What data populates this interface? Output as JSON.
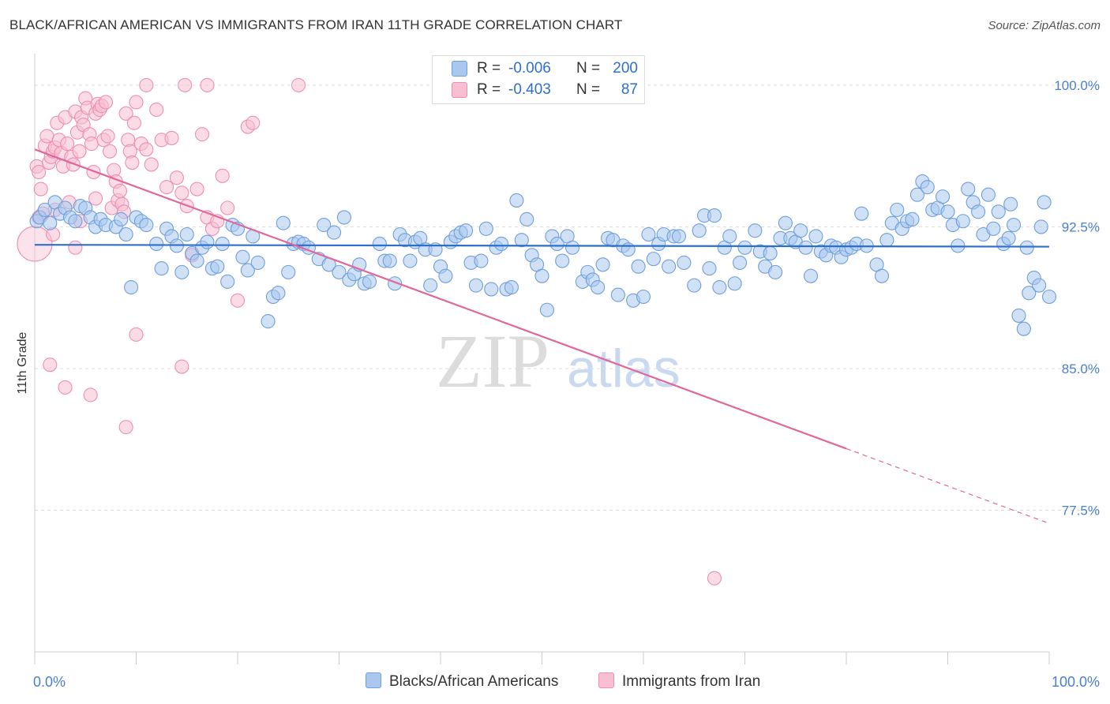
{
  "title": "BLACK/AFRICAN AMERICAN VS IMMIGRANTS FROM IRAN 11TH GRADE CORRELATION CHART",
  "source": "Source: ZipAtlas.com",
  "watermark": {
    "zip": "ZIP",
    "atlas": "atlas"
  },
  "colors": {
    "blue_fill": "#aac8ee",
    "blue_stroke": "#6f9fdc",
    "blue_line": "#2d6fcc",
    "pink_fill": "#f8bfd2",
    "pink_stroke": "#ee8fb0",
    "pink_line": "#e0689a",
    "axis_text": "#4a7fcf",
    "grid": "#dddddd"
  },
  "legend": {
    "rows": [
      {
        "r_label": "R =",
        "r_value": "-0.006",
        "n_label": "N =",
        "n_value": "200"
      },
      {
        "r_label": "R =",
        "r_value": "-0.403",
        "n_label": "N =",
        "n_value": "87"
      }
    ]
  },
  "bottom_legend": {
    "blue_label": "Blacks/African Americans",
    "pink_label": "Immigrants from Iran"
  },
  "chart_data": {
    "type": "scatter",
    "title": "BLACK/AFRICAN AMERICAN VS IMMIGRANTS FROM IRAN 11TH GRADE CORRELATION CHART",
    "xlabel": "",
    "ylabel": "11th Grade",
    "xlim": [
      0,
      100
    ],
    "ylim": [
      70.0,
      101.5
    ],
    "x_tick_labels": [
      "0.0%",
      "100.0%"
    ],
    "y_ticks": [
      77.5,
      85.0,
      92.5,
      100.0
    ],
    "y_tick_labels": [
      "77.5%",
      "85.0%",
      "92.5%",
      "100.0%"
    ],
    "grid": true,
    "series": [
      {
        "name": "Blacks/African Americans",
        "color": "blue",
        "R": -0.006,
        "N": 200,
        "trend": {
          "x0": 0,
          "y0": 91.55,
          "x1": 100,
          "y1": 91.45
        },
        "points": [
          [
            0.2,
            92.8
          ],
          [
            0.5,
            93.0
          ],
          [
            1,
            93.4
          ],
          [
            1.5,
            92.7
          ],
          [
            2,
            93.8
          ],
          [
            2.5,
            93.2
          ],
          [
            3,
            93.5
          ],
          [
            3.5,
            93.0
          ],
          [
            4,
            92.8
          ],
          [
            4.5,
            93.6
          ],
          [
            5,
            93.5
          ],
          [
            5.5,
            93.0
          ],
          [
            6,
            92.5
          ],
          [
            6.5,
            92.9
          ],
          [
            7,
            92.6
          ],
          [
            8,
            92.5
          ],
          [
            8.5,
            92.9
          ],
          [
            9,
            92.1
          ],
          [
            9.5,
            89.3
          ],
          [
            10,
            93.0
          ],
          [
            10.5,
            92.8
          ],
          [
            11,
            92.6
          ],
          [
            12,
            91.6
          ],
          [
            12.5,
            90.3
          ],
          [
            13,
            92.4
          ],
          [
            13.5,
            92.0
          ],
          [
            14,
            91.5
          ],
          [
            14.5,
            90.1
          ],
          [
            15,
            92.1
          ],
          [
            15.5,
            91.1
          ],
          [
            16,
            90.7
          ],
          [
            16.5,
            91.4
          ],
          [
            17,
            91.7
          ],
          [
            17.5,
            90.3
          ],
          [
            18,
            90.4
          ],
          [
            18.5,
            91.6
          ],
          [
            19,
            89.6
          ],
          [
            19.5,
            92.6
          ],
          [
            20,
            92.4
          ],
          [
            20.5,
            90.9
          ],
          [
            21,
            90.2
          ],
          [
            21.5,
            92.0
          ],
          [
            22,
            90.6
          ],
          [
            23,
            87.5
          ],
          [
            23.5,
            88.8
          ],
          [
            24,
            89.0
          ],
          [
            24.5,
            92.7
          ],
          [
            25,
            90.1
          ],
          [
            25.5,
            91.6
          ],
          [
            26,
            91.7
          ],
          [
            26.5,
            91.6
          ],
          [
            27,
            91.4
          ],
          [
            28,
            90.8
          ],
          [
            28.5,
            92.6
          ],
          [
            29,
            90.5
          ],
          [
            29.5,
            92.2
          ],
          [
            30,
            90.1
          ],
          [
            30.5,
            93.0
          ],
          [
            31,
            89.7
          ],
          [
            31.5,
            90.0
          ],
          [
            32,
            90.5
          ],
          [
            32.5,
            89.5
          ],
          [
            33,
            89.6
          ],
          [
            34,
            91.6
          ],
          [
            34.5,
            90.7
          ],
          [
            35,
            90.7
          ],
          [
            35.5,
            89.5
          ],
          [
            36,
            92.1
          ],
          [
            36.5,
            91.8
          ],
          [
            37,
            90.7
          ],
          [
            37.5,
            91.7
          ],
          [
            38,
            91.9
          ],
          [
            38.5,
            91.3
          ],
          [
            39,
            89.4
          ],
          [
            39.5,
            91.3
          ],
          [
            40,
            90.4
          ],
          [
            40.5,
            89.9
          ],
          [
            41,
            91.7
          ],
          [
            41.5,
            92.0
          ],
          [
            42,
            92.2
          ],
          [
            42.5,
            92.3
          ],
          [
            43,
            90.6
          ],
          [
            43.5,
            89.4
          ],
          [
            44,
            90.7
          ],
          [
            44.5,
            92.4
          ],
          [
            45,
            89.2
          ],
          [
            45.5,
            91.4
          ],
          [
            46,
            91.6
          ],
          [
            46.5,
            89.2
          ],
          [
            47,
            89.3
          ],
          [
            47.5,
            93.9
          ],
          [
            48,
            91.8
          ],
          [
            48.5,
            92.9
          ],
          [
            49,
            91.0
          ],
          [
            49.5,
            90.5
          ],
          [
            50,
            89.9
          ],
          [
            50.5,
            88.1
          ],
          [
            51,
            92.0
          ],
          [
            51.5,
            91.6
          ],
          [
            52,
            90.7
          ],
          [
            52.5,
            92.0
          ],
          [
            53,
            91.4
          ],
          [
            54,
            89.6
          ],
          [
            54.5,
            90.1
          ],
          [
            55,
            89.7
          ],
          [
            55.5,
            89.3
          ],
          [
            56,
            90.5
          ],
          [
            56.5,
            91.9
          ],
          [
            57,
            91.8
          ],
          [
            57.5,
            88.9
          ],
          [
            58,
            91.5
          ],
          [
            58.5,
            91.3
          ],
          [
            59,
            88.6
          ],
          [
            59.5,
            90.4
          ],
          [
            60,
            88.8
          ],
          [
            60.5,
            92.1
          ],
          [
            61,
            90.8
          ],
          [
            61.5,
            91.6
          ],
          [
            62,
            92.1
          ],
          [
            62.5,
            90.4
          ],
          [
            63,
            92.0
          ],
          [
            63.5,
            92.0
          ],
          [
            64,
            90.6
          ],
          [
            65,
            89.4
          ],
          [
            65.5,
            92.3
          ],
          [
            66,
            93.1
          ],
          [
            66.5,
            90.3
          ],
          [
            67,
            93.1
          ],
          [
            67.5,
            89.3
          ],
          [
            68,
            91.4
          ],
          [
            68.5,
            92.0
          ],
          [
            69,
            89.5
          ],
          [
            69.5,
            90.6
          ],
          [
            70,
            91.4
          ],
          [
            71,
            92.3
          ],
          [
            71.5,
            91.2
          ],
          [
            72,
            90.4
          ],
          [
            72.5,
            91.1
          ],
          [
            73,
            90.1
          ],
          [
            73.5,
            91.9
          ],
          [
            74,
            92.7
          ],
          [
            74.5,
            91.9
          ],
          [
            75,
            91.7
          ],
          [
            75.5,
            92.3
          ],
          [
            76,
            91.4
          ],
          [
            76.5,
            89.9
          ],
          [
            77,
            92.0
          ],
          [
            77.5,
            91.2
          ],
          [
            78,
            91.0
          ],
          [
            78.5,
            91.5
          ],
          [
            79,
            91.4
          ],
          [
            79.5,
            90.9
          ],
          [
            80,
            91.3
          ],
          [
            80.5,
            91.4
          ],
          [
            81,
            91.6
          ],
          [
            81.5,
            93.2
          ],
          [
            82,
            91.5
          ],
          [
            83,
            90.5
          ],
          [
            83.5,
            89.9
          ],
          [
            84,
            91.8
          ],
          [
            84.5,
            92.7
          ],
          [
            85,
            93.4
          ],
          [
            85.5,
            92.4
          ],
          [
            86,
            92.8
          ],
          [
            86.5,
            92.9
          ],
          [
            87,
            94.2
          ],
          [
            87.5,
            94.9
          ],
          [
            88,
            94.6
          ],
          [
            88.5,
            93.4
          ],
          [
            89,
            93.5
          ],
          [
            89.5,
            94.1
          ],
          [
            90,
            93.3
          ],
          [
            90.5,
            92.6
          ],
          [
            91,
            91.5
          ],
          [
            91.5,
            92.8
          ],
          [
            92,
            94.5
          ],
          [
            92.5,
            93.8
          ],
          [
            93,
            93.3
          ],
          [
            93.5,
            92.1
          ],
          [
            94,
            94.2
          ],
          [
            94.5,
            92.4
          ],
          [
            95,
            93.3
          ],
          [
            95.5,
            91.6
          ],
          [
            96,
            91.9
          ],
          [
            96.5,
            92.6
          ],
          [
            97,
            87.8
          ],
          [
            97.5,
            87.1
          ],
          [
            98,
            89.0
          ],
          [
            98.5,
            89.8
          ],
          [
            99,
            89.4
          ],
          [
            99.5,
            93.8
          ],
          [
            100,
            88.8
          ],
          [
            99.2,
            92.5
          ],
          [
            97.8,
            91.4
          ],
          [
            96.2,
            93.7
          ]
        ]
      },
      {
        "name": "Immigrants from Iran",
        "color": "pink",
        "R": -0.403,
        "N": 87,
        "trend": {
          "x0": 0,
          "y0": 96.6,
          "x1": 100,
          "y1": 76.8,
          "solid_until_x": 80
        },
        "points": [
          [
            0,
            91.6
          ],
          [
            0.2,
            95.7
          ],
          [
            0.4,
            95.4
          ],
          [
            0.6,
            94.5
          ],
          [
            0.8,
            93.2
          ],
          [
            1,
            96.8
          ],
          [
            1.2,
            97.3
          ],
          [
            1.4,
            95.9
          ],
          [
            1.6,
            96.2
          ],
          [
            1.8,
            96.5
          ],
          [
            2,
            96.7
          ],
          [
            2.2,
            98.0
          ],
          [
            2.4,
            97.1
          ],
          [
            2.6,
            96.4
          ],
          [
            2.8,
            95.7
          ],
          [
            3,
            98.3
          ],
          [
            3.2,
            96.9
          ],
          [
            3.4,
            93.8
          ],
          [
            3.6,
            96.2
          ],
          [
            3.8,
            95.8
          ],
          [
            4,
            98.6
          ],
          [
            4.2,
            97.5
          ],
          [
            4.4,
            96.5
          ],
          [
            4.6,
            98.3
          ],
          [
            4.8,
            97.9
          ],
          [
            5,
            99.3
          ],
          [
            5.2,
            98.8
          ],
          [
            5.4,
            97.4
          ],
          [
            5.6,
            96.9
          ],
          [
            5.8,
            95.4
          ],
          [
            6,
            98.5
          ],
          [
            6.2,
            99.0
          ],
          [
            6.4,
            98.7
          ],
          [
            6.6,
            98.9
          ],
          [
            6.8,
            97.1
          ],
          [
            7,
            99.1
          ],
          [
            7.2,
            97.3
          ],
          [
            7.4,
            96.5
          ],
          [
            7.6,
            93.5
          ],
          [
            7.8,
            95.5
          ],
          [
            8,
            94.9
          ],
          [
            8.2,
            93.9
          ],
          [
            8.4,
            94.4
          ],
          [
            8.6,
            93.7
          ],
          [
            8.8,
            93.3
          ],
          [
            9,
            98.5
          ],
          [
            9.2,
            97.1
          ],
          [
            9.4,
            96.5
          ],
          [
            9.6,
            95.9
          ],
          [
            9.8,
            98.0
          ],
          [
            10,
            99.1
          ],
          [
            10.5,
            96.9
          ],
          [
            11,
            96.6
          ],
          [
            11.5,
            95.8
          ],
          [
            12,
            98.7
          ],
          [
            12.5,
            97.1
          ],
          [
            13,
            94.6
          ],
          [
            13.5,
            97.2
          ],
          [
            14,
            95.1
          ],
          [
            14.5,
            94.3
          ],
          [
            15,
            93.6
          ],
          [
            15.5,
            91.0
          ],
          [
            16,
            94.5
          ],
          [
            16.5,
            97.4
          ],
          [
            17,
            93.0
          ],
          [
            17.5,
            92.4
          ],
          [
            18,
            92.8
          ],
          [
            18.5,
            95.2
          ],
          [
            19,
            93.5
          ],
          [
            20,
            88.6
          ],
          [
            21,
            97.8
          ],
          [
            21.5,
            98.0
          ],
          [
            10,
            86.8
          ],
          [
            11,
            100.0
          ],
          [
            14.8,
            100.0
          ],
          [
            17,
            100.0
          ],
          [
            26,
            100.0
          ],
          [
            1.5,
            85.2
          ],
          [
            3,
            84.0
          ],
          [
            5.5,
            83.6
          ],
          [
            9,
            81.9
          ],
          [
            14.5,
            85.1
          ],
          [
            67,
            73.9
          ],
          [
            2,
            93.4
          ],
          [
            4.5,
            92.8
          ],
          [
            6,
            94.0
          ],
          [
            0.4,
            93.0
          ],
          [
            1.8,
            92.1
          ],
          [
            4,
            91.4
          ]
        ]
      }
    ]
  }
}
